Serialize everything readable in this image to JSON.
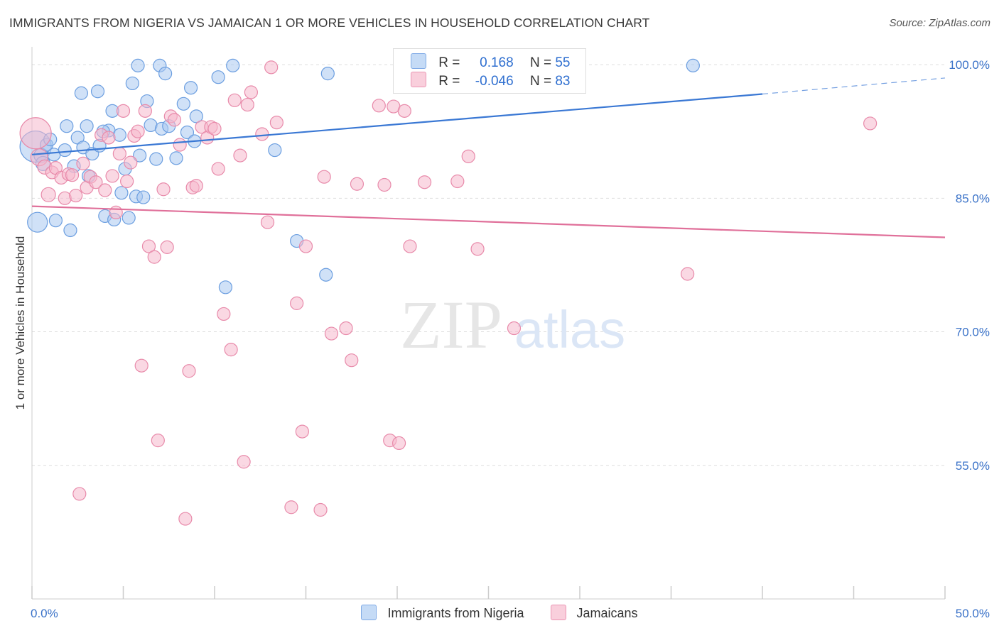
{
  "header": {
    "title": "IMMIGRANTS FROM NIGERIA VS JAMAICAN 1 OR MORE VEHICLES IN HOUSEHOLD CORRELATION CHART",
    "source": "Source: ZipAtlas.com"
  },
  "watermark": {
    "zip": "ZIP",
    "atlas": "atlas"
  },
  "legend": {
    "rows": [
      {
        "r_label": "R =",
        "r_value": "0.168",
        "n_label": "N =",
        "n_value": "55",
        "color": "#a9c8f0"
      },
      {
        "r_label": "R =",
        "r_value": "-0.046",
        "n_label": "N =",
        "n_value": "83",
        "color": "#f5b8cc"
      }
    ]
  },
  "chart_data": {
    "type": "scatter",
    "xlabel": "",
    "ylabel": "1 or more Vehicles in Household",
    "xlim": [
      0,
      50
    ],
    "ylim": [
      40,
      102
    ],
    "x_ticks": [
      "0.0%",
      "50.0%"
    ],
    "y_ticks": [
      {
        "value": 100,
        "label": "100.0%"
      },
      {
        "value": 85,
        "label": "85.0%"
      },
      {
        "value": 70,
        "label": "70.0%"
      },
      {
        "value": 55,
        "label": "55.0%"
      }
    ],
    "grid": true,
    "legend_position": "bottom-center",
    "series": [
      {
        "name": "Immigrants from Nigeria",
        "color": "#a9c8f0",
        "edge": "#6b9ee0",
        "trend": {
          "x0": 0,
          "y0": 89.9,
          "x1": 40,
          "y1": 96.7,
          "dash_to_x": 50,
          "dash_to_y": 98.5,
          "color": "#3a78d4"
        },
        "points": [
          [
            0.2,
            90.8,
            22
          ],
          [
            0.3,
            82.3,
            14
          ],
          [
            0.5,
            89.8,
            10
          ],
          [
            0.6,
            88.9,
            10
          ],
          [
            0.8,
            91.0,
            9
          ],
          [
            1.0,
            91.6,
            9
          ],
          [
            1.2,
            89.9,
            9
          ],
          [
            1.3,
            82.5,
            9
          ],
          [
            1.8,
            90.4,
            9
          ],
          [
            1.9,
            93.1,
            9
          ],
          [
            2.1,
            81.4,
            9
          ],
          [
            2.3,
            88.6,
            9
          ],
          [
            2.5,
            91.8,
            9
          ],
          [
            2.7,
            96.8,
            9
          ],
          [
            2.8,
            90.7,
            9
          ],
          [
            3.0,
            93.1,
            9
          ],
          [
            3.1,
            87.5,
            9
          ],
          [
            3.3,
            90.0,
            9
          ],
          [
            3.6,
            97.0,
            9
          ],
          [
            3.7,
            90.9,
            9
          ],
          [
            4.0,
            83.0,
            9
          ],
          [
            4.2,
            92.6,
            9
          ],
          [
            4.4,
            94.8,
            9
          ],
          [
            4.5,
            82.6,
            9
          ],
          [
            4.8,
            92.1,
            9
          ],
          [
            4.9,
            85.6,
            9
          ],
          [
            5.1,
            88.3,
            9
          ],
          [
            5.3,
            82.8,
            9
          ],
          [
            5.5,
            97.9,
            9
          ],
          [
            5.7,
            85.2,
            9
          ],
          [
            5.9,
            89.8,
            9
          ],
          [
            6.1,
            85.1,
            9
          ],
          [
            6.3,
            95.9,
            9
          ],
          [
            6.5,
            93.2,
            9
          ],
          [
            6.8,
            89.4,
            9
          ],
          [
            7.0,
            99.9,
            9
          ],
          [
            7.1,
            92.8,
            9
          ],
          [
            7.3,
            99.0,
            9
          ],
          [
            7.5,
            93.1,
            9
          ],
          [
            7.9,
            89.5,
            9
          ],
          [
            8.3,
            95.6,
            9
          ],
          [
            8.5,
            92.4,
            9
          ],
          [
            8.7,
            97.4,
            9
          ],
          [
            8.9,
            91.4,
            9
          ],
          [
            9.0,
            94.2,
            9
          ],
          [
            10.2,
            98.6,
            9
          ],
          [
            10.6,
            75.0,
            9
          ],
          [
            11.0,
            99.9,
            9
          ],
          [
            13.3,
            90.4,
            9
          ],
          [
            14.5,
            80.2,
            9
          ],
          [
            16.1,
            76.4,
            9
          ],
          [
            16.2,
            99.0,
            9
          ],
          [
            36.2,
            99.9,
            9
          ],
          [
            5.8,
            99.9,
            9
          ],
          [
            3.9,
            92.5,
            9
          ]
        ]
      },
      {
        "name": "Jamaicans",
        "color": "#f5b8cc",
        "edge": "#e88aaa",
        "trend": {
          "x0": 0,
          "y0": 84.1,
          "x1": 50,
          "y1": 80.6,
          "color": "#e0709a"
        },
        "points": [
          [
            0.2,
            92.3,
            22
          ],
          [
            0.4,
            89.6,
            12
          ],
          [
            0.7,
            88.5,
            10
          ],
          [
            0.9,
            85.4,
            10
          ],
          [
            1.1,
            87.9,
            9
          ],
          [
            1.3,
            88.4,
            9
          ],
          [
            1.6,
            87.3,
            9
          ],
          [
            1.8,
            85.0,
            9
          ],
          [
            2.0,
            87.7,
            9
          ],
          [
            2.2,
            87.6,
            9
          ],
          [
            2.4,
            85.3,
            9
          ],
          [
            2.6,
            51.8,
            9
          ],
          [
            2.8,
            88.9,
            9
          ],
          [
            3.0,
            86.2,
            9
          ],
          [
            3.2,
            87.4,
            9
          ],
          [
            3.5,
            86.8,
            9
          ],
          [
            3.8,
            92.1,
            9
          ],
          [
            4.0,
            85.9,
            9
          ],
          [
            4.2,
            91.8,
            9
          ],
          [
            4.4,
            87.5,
            9
          ],
          [
            4.6,
            83.4,
            9
          ],
          [
            4.8,
            90.0,
            9
          ],
          [
            5.0,
            94.8,
            9
          ],
          [
            5.2,
            86.9,
            9
          ],
          [
            5.4,
            89.0,
            9
          ],
          [
            5.6,
            92.0,
            9
          ],
          [
            5.8,
            92.5,
            9
          ],
          [
            6.0,
            66.2,
            9
          ],
          [
            6.2,
            94.8,
            9
          ],
          [
            6.4,
            79.6,
            9
          ],
          [
            6.7,
            78.4,
            9
          ],
          [
            6.9,
            57.8,
            9
          ],
          [
            7.2,
            86.0,
            9
          ],
          [
            7.4,
            79.5,
            9
          ],
          [
            7.6,
            94.2,
            9
          ],
          [
            7.8,
            93.8,
            9
          ],
          [
            8.1,
            91.0,
            9
          ],
          [
            8.4,
            49.0,
            9
          ],
          [
            8.6,
            65.6,
            9
          ],
          [
            8.8,
            86.2,
            9
          ],
          [
            9.0,
            86.4,
            9
          ],
          [
            9.3,
            93.0,
            9
          ],
          [
            9.6,
            91.8,
            9
          ],
          [
            9.8,
            93.0,
            9
          ],
          [
            10.0,
            92.8,
            9
          ],
          [
            10.2,
            88.3,
            9
          ],
          [
            10.5,
            72.0,
            9
          ],
          [
            10.9,
            68.0,
            9
          ],
          [
            11.1,
            96.0,
            9
          ],
          [
            11.4,
            89.8,
            9
          ],
          [
            11.6,
            55.4,
            9
          ],
          [
            11.8,
            95.5,
            9
          ],
          [
            12.0,
            96.9,
            9
          ],
          [
            12.6,
            92.2,
            9
          ],
          [
            12.9,
            82.3,
            9
          ],
          [
            13.1,
            99.7,
            9
          ],
          [
            13.4,
            93.5,
            9
          ],
          [
            14.2,
            50.3,
            9
          ],
          [
            14.5,
            73.2,
            9
          ],
          [
            14.8,
            58.8,
            9
          ],
          [
            15.0,
            79.6,
            9
          ],
          [
            15.8,
            50.0,
            9
          ],
          [
            16.0,
            87.4,
            9
          ],
          [
            16.4,
            69.8,
            9
          ],
          [
            17.2,
            70.4,
            9
          ],
          [
            17.5,
            66.8,
            9
          ],
          [
            17.8,
            86.6,
            9
          ],
          [
            19.0,
            95.4,
            9
          ],
          [
            19.3,
            86.5,
            9
          ],
          [
            19.6,
            57.8,
            9
          ],
          [
            19.8,
            95.3,
            9
          ],
          [
            20.1,
            57.5,
            9
          ],
          [
            20.4,
            94.8,
            9
          ],
          [
            20.7,
            79.6,
            9
          ],
          [
            21.5,
            86.8,
            9
          ],
          [
            23.3,
            86.9,
            9
          ],
          [
            23.9,
            89.7,
            9
          ],
          [
            24.4,
            79.3,
            9
          ],
          [
            26.4,
            70.4,
            9
          ],
          [
            27.5,
            99.9,
            9
          ],
          [
            35.9,
            76.5,
            9
          ],
          [
            45.9,
            93.4,
            9
          ],
          [
            27.8,
            97.8,
            9
          ]
        ]
      }
    ]
  }
}
